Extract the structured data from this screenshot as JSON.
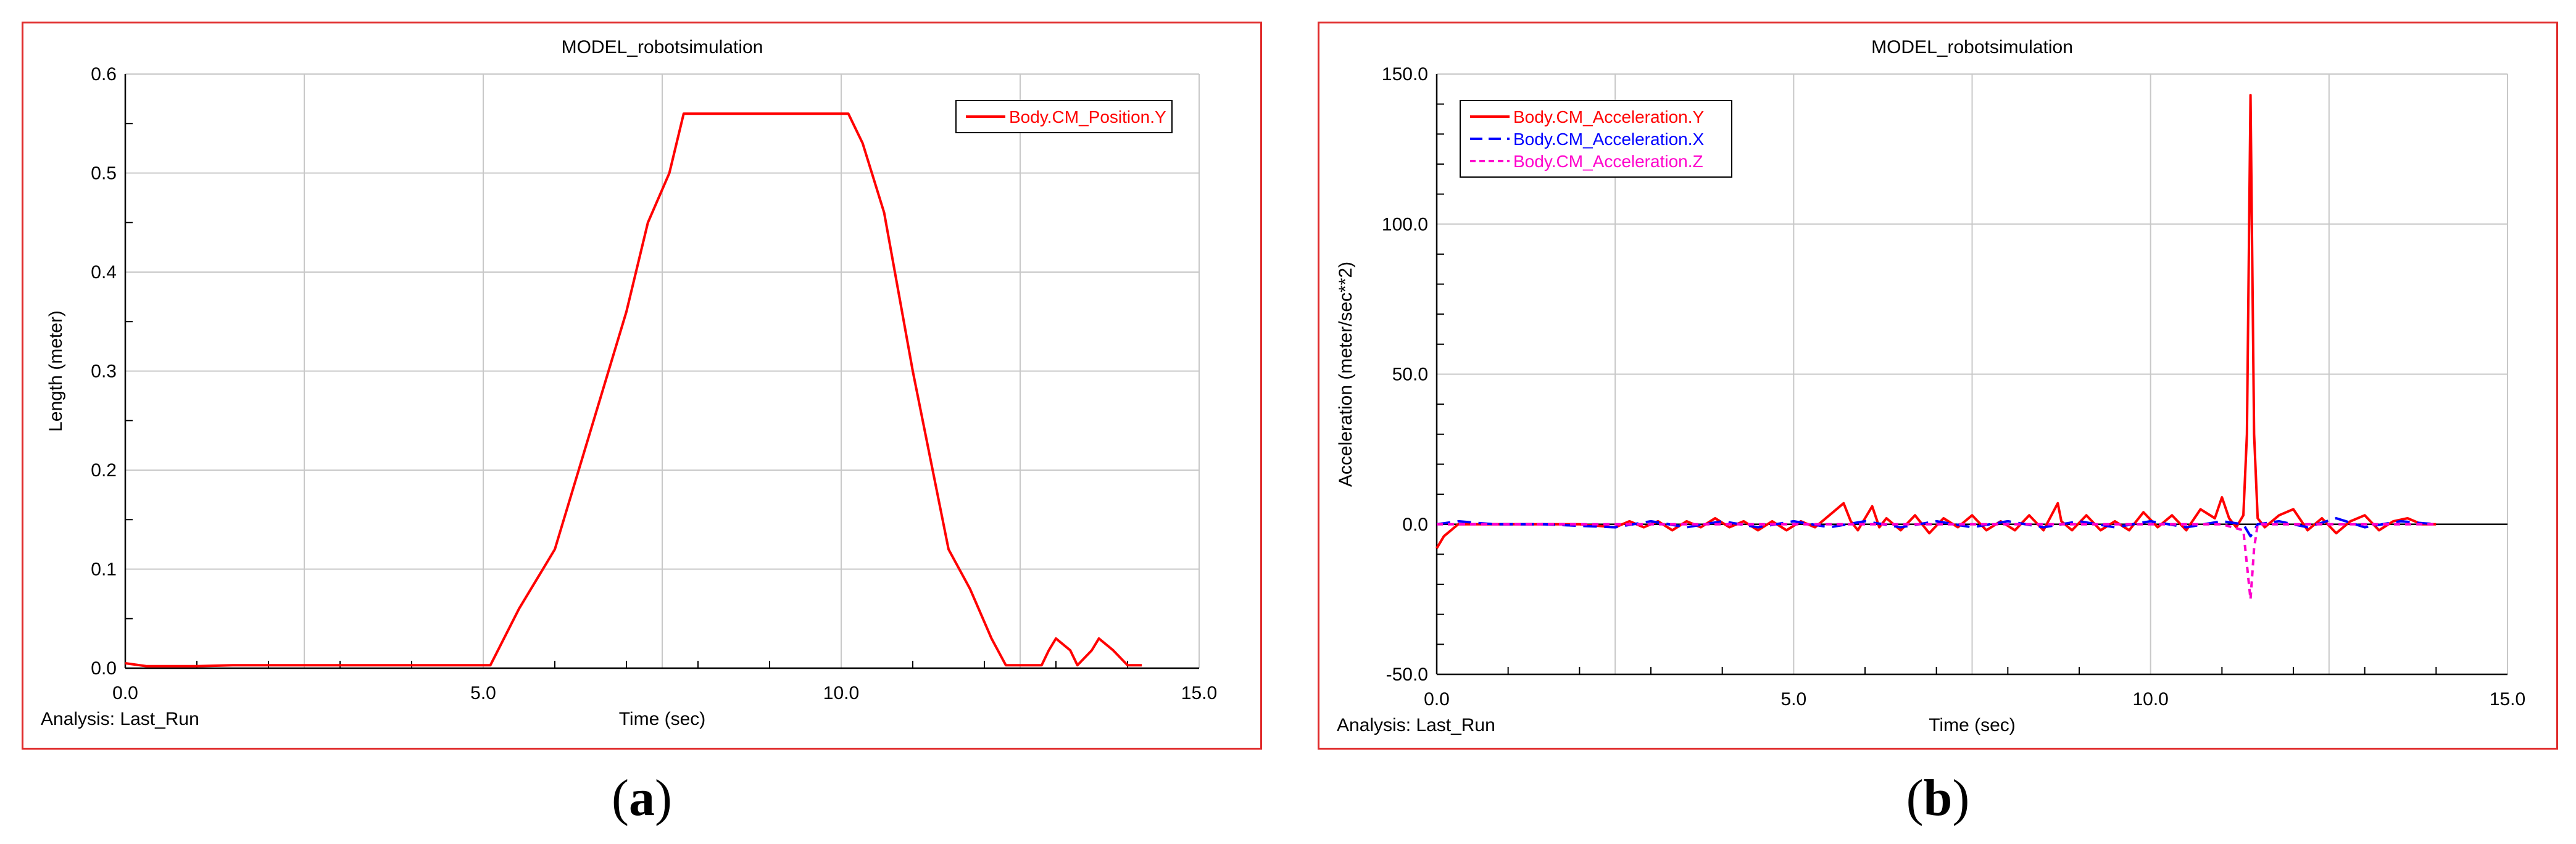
{
  "panels": [
    {
      "caption_letter": "a",
      "analysis_label": "Analysis:  Last_Run"
    },
    {
      "caption_letter": "b",
      "analysis_label": "Analysis:  Last_Run"
    }
  ],
  "chart_data": [
    {
      "type": "line",
      "title": "MODEL_robotsimulation",
      "xlabel": "Time (sec)",
      "ylabel": "Length (meter)",
      "xlim": [
        0,
        15
      ],
      "ylim": [
        0,
        0.6
      ],
      "x_ticks": [
        0,
        5,
        10,
        15
      ],
      "x_tick_labels": [
        "0.0",
        "5.0",
        "10.0",
        "15.0"
      ],
      "y_ticks": [
        0,
        0.1,
        0.2,
        0.3,
        0.4,
        0.5,
        0.6
      ],
      "y_tick_labels": [
        "0.0",
        "0.1",
        "0.2",
        "0.3",
        "0.4",
        "0.5",
        "0.6"
      ],
      "grid": true,
      "legend_position": "top-right",
      "series": [
        {
          "name": "Body.CM_Position.Y",
          "color": "#ff0000",
          "dash": "solid",
          "x": [
            0,
            0.3,
            1.0,
            1.5,
            5.0,
            5.1,
            5.5,
            6.0,
            6.5,
            7.0,
            7.3,
            7.6,
            7.8,
            10.1,
            10.3,
            10.6,
            11.0,
            11.5,
            11.8,
            12.1,
            12.3,
            12.8,
            12.9,
            13.0,
            13.2,
            13.3,
            13.5,
            13.6,
            13.8,
            14.0,
            14.2
          ],
          "y": [
            0.005,
            0.002,
            0.002,
            0.003,
            0.003,
            0.003,
            0.06,
            0.12,
            0.24,
            0.36,
            0.45,
            0.5,
            0.56,
            0.56,
            0.53,
            0.46,
            0.3,
            0.12,
            0.08,
            0.03,
            0.003,
            0.003,
            0.018,
            0.03,
            0.018,
            0.003,
            0.018,
            0.03,
            0.018,
            0.003,
            0.003
          ]
        }
      ]
    },
    {
      "type": "line",
      "title": "MODEL_robotsimulation",
      "xlabel": "Time (sec)",
      "ylabel": "Acceleration (meter/sec**2)",
      "xlim": [
        0,
        15
      ],
      "ylim": [
        -50,
        150
      ],
      "x_ticks": [
        0,
        5,
        10,
        15
      ],
      "x_tick_labels": [
        "0.0",
        "5.0",
        "10.0",
        "15.0"
      ],
      "y_ticks": [
        -50,
        0,
        50,
        100,
        150
      ],
      "y_tick_labels": [
        "-50.0",
        "0.0",
        "50.0",
        "100.0",
        "150.0"
      ],
      "grid": true,
      "legend_position": "top-left",
      "series": [
        {
          "name": "Body.CM_Acceleration.Y",
          "color": "#ff0000",
          "dash": "solid",
          "x": [
            0,
            0.1,
            0.3,
            0.6,
            1.0,
            1.5,
            2.0,
            2.5,
            2.7,
            2.9,
            3.1,
            3.3,
            3.5,
            3.7,
            3.9,
            4.1,
            4.3,
            4.5,
            4.7,
            4.9,
            5.1,
            5.3,
            5.5,
            5.7,
            5.8,
            5.9,
            6.1,
            6.2,
            6.3,
            6.5,
            6.7,
            6.9,
            7.1,
            7.3,
            7.5,
            7.7,
            7.9,
            8.1,
            8.3,
            8.5,
            8.7,
            8.75,
            8.9,
            9.1,
            9.3,
            9.5,
            9.7,
            9.9,
            10.1,
            10.3,
            10.5,
            10.7,
            10.9,
            11.0,
            11.1,
            11.2,
            11.3,
            11.35,
            11.4,
            11.45,
            11.5,
            11.6,
            11.8,
            12.0,
            12.2,
            12.4,
            12.6,
            12.8,
            13.0,
            13.2,
            13.4,
            13.6,
            13.8,
            14.0
          ],
          "y": [
            -8,
            -4,
            0,
            0,
            0,
            0,
            0,
            -1,
            1,
            -1,
            1,
            -2,
            1,
            -1,
            2,
            -1,
            1,
            -2,
            1,
            -2,
            1,
            -1,
            3,
            7,
            1,
            -2,
            6,
            -1,
            2,
            -2,
            3,
            -3,
            2,
            -1,
            3,
            -2,
            1,
            -2,
            3,
            -2,
            7,
            1,
            -2,
            3,
            -2,
            1,
            -2,
            4,
            -1,
            3,
            -2,
            5,
            2,
            9,
            2,
            -1,
            3,
            30,
            143,
            30,
            2,
            -1,
            3,
            5,
            -2,
            2,
            -3,
            1,
            3,
            -2,
            1,
            2,
            0,
            0
          ]
        },
        {
          "name": "Body.CM_Acceleration.X",
          "color": "#0000ff",
          "dash": "long",
          "x": [
            0,
            0.3,
            0.8,
            1.5,
            2.5,
            3.0,
            3.5,
            4.0,
            4.5,
            5.0,
            5.5,
            6.0,
            6.5,
            7.0,
            7.5,
            8.0,
            8.5,
            9.0,
            9.5,
            10.0,
            10.5,
            11.0,
            11.3,
            11.4,
            11.5,
            11.8,
            12.2,
            12.6,
            13.0,
            13.5,
            14.0
          ],
          "y": [
            0,
            1,
            0,
            0,
            -1,
            1,
            -1,
            1,
            -1,
            1,
            -1,
            1,
            -1,
            1,
            -1,
            1,
            -1,
            1,
            -1,
            1,
            -1,
            1,
            0,
            -4,
            0,
            1,
            -1,
            2,
            -1,
            1,
            0
          ]
        },
        {
          "name": "Body.CM_Acceleration.Z",
          "color": "#ff00cc",
          "dash": "short",
          "x": [
            0,
            1.0,
            2.0,
            3.0,
            4.0,
            5.0,
            6.0,
            7.0,
            8.0,
            9.0,
            10.0,
            11.0,
            11.3,
            11.4,
            11.45,
            11.5,
            12.0,
            13.0,
            14.0
          ],
          "y": [
            0,
            0,
            0,
            0,
            0,
            0,
            0,
            0,
            0,
            0,
            0,
            0,
            -2,
            -25,
            -8,
            0,
            0,
            0,
            0
          ]
        }
      ]
    }
  ]
}
